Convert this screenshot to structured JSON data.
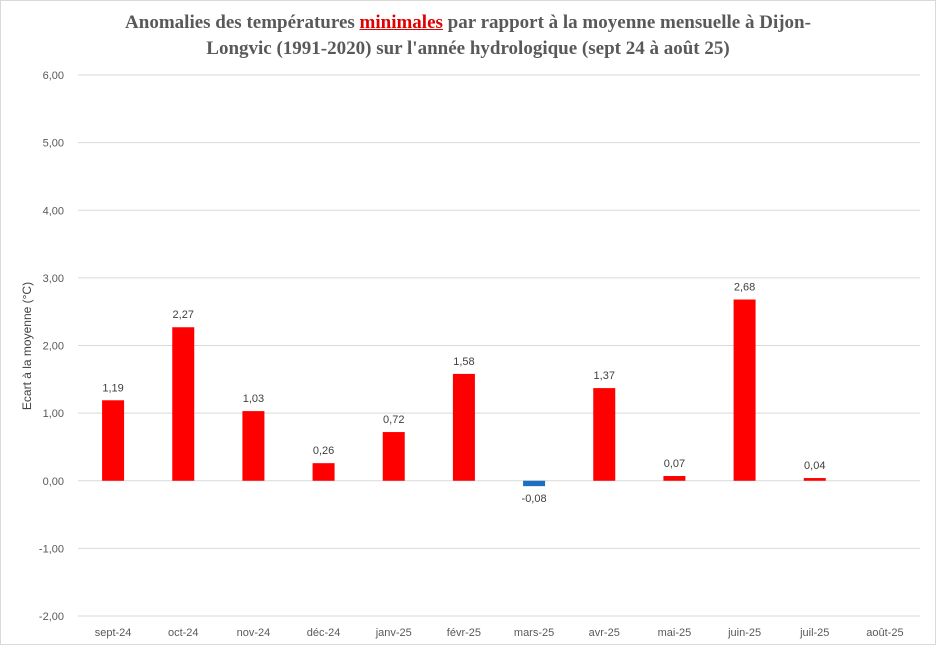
{
  "chart_data": {
    "type": "bar",
    "title_parts": {
      "before": "Anomalies des températures ",
      "highlight": "minimales",
      "line1_after": " par rapport à la moyenne mensuelle à Dijon-",
      "line2": "Longvic (1991-2020) sur l'année hydrologique (sept 24 à août 25)"
    },
    "ylabel": "Ecart à la moyenne (°C)",
    "xlabel": "",
    "ylim": [
      -2,
      6
    ],
    "yticks": [
      "-2,00",
      "-1,00",
      "0,00",
      "1,00",
      "2,00",
      "3,00",
      "4,00",
      "5,00",
      "6,00"
    ],
    "categories": [
      "sept-24",
      "oct-24",
      "nov-24",
      "déc-24",
      "janv-25",
      "févr-25",
      "mars-25",
      "avr-25",
      "mai-25",
      "juin-25",
      "juil-25",
      "août-25"
    ],
    "values": [
      1.19,
      2.27,
      1.03,
      0.26,
      0.72,
      1.58,
      -0.08,
      1.37,
      0.07,
      2.68,
      0.04,
      null
    ],
    "value_labels": [
      "1,19",
      "2,27",
      "1,03",
      "0,26",
      "0,72",
      "1,58",
      "-0,08",
      "1,37",
      "0,07",
      "2,68",
      "0,04",
      ""
    ],
    "grid": true,
    "colors": {
      "positive": "#ff0000",
      "negative": "#1f6fc1",
      "grid": "#d9d9d9",
      "title_highlight": "#e00000"
    }
  }
}
